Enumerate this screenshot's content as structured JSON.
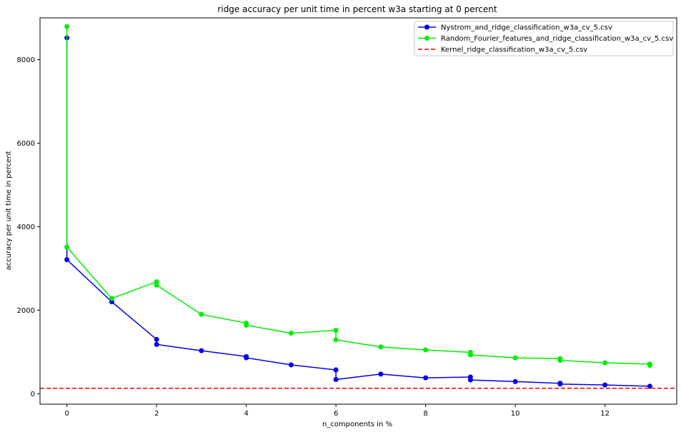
{
  "chart_data": {
    "type": "line",
    "title": "ridge accuracy per unit time in percent w3a starting at 0 percent",
    "xlabel": "n_components in %",
    "ylabel": "accuracy per unit time in percent",
    "xlim": [
      -0.6,
      13.6
    ],
    "ylim": [
      -250,
      9000
    ],
    "xticks": [
      0,
      2,
      4,
      6,
      8,
      10,
      12
    ],
    "yticks": [
      0,
      2000,
      4000,
      6000,
      8000
    ],
    "grid": false,
    "legend_position": "top-right",
    "series": [
      {
        "name": "Nystrom_and_ridge_classification_w3a_cv_5.csv",
        "color": "#0000ee",
        "style": "solid-marker",
        "x": [
          0,
          0,
          1,
          2,
          2,
          3,
          4,
          4,
          5,
          6,
          6,
          7,
          8,
          9,
          9,
          10,
          11,
          11,
          12,
          13
        ],
        "y": [
          8520,
          3210,
          2200,
          1300,
          1180,
          1030,
          890,
          860,
          690,
          570,
          340,
          470,
          380,
          400,
          330,
          290,
          250,
          230,
          210,
          180
        ]
      },
      {
        "name": "Random_Fourier_features_and_ridge_classification_w3a_cv_5.csv",
        "color": "#00ee00",
        "style": "solid-marker",
        "x": [
          0,
          0,
          1,
          2,
          2,
          3,
          4,
          4,
          5,
          6,
          6,
          7,
          8,
          9,
          9,
          10,
          11,
          11,
          12,
          13,
          13
        ],
        "y": [
          8790,
          3510,
          2280,
          2680,
          2600,
          1900,
          1690,
          1640,
          1450,
          1520,
          1290,
          1120,
          1050,
          990,
          930,
          860,
          840,
          800,
          740,
          710,
          680
        ]
      },
      {
        "name": "Kernel_ridge_classification_w3a_cv_5.csv",
        "color": "#ee0000",
        "style": "dashed",
        "y": 130
      }
    ]
  }
}
